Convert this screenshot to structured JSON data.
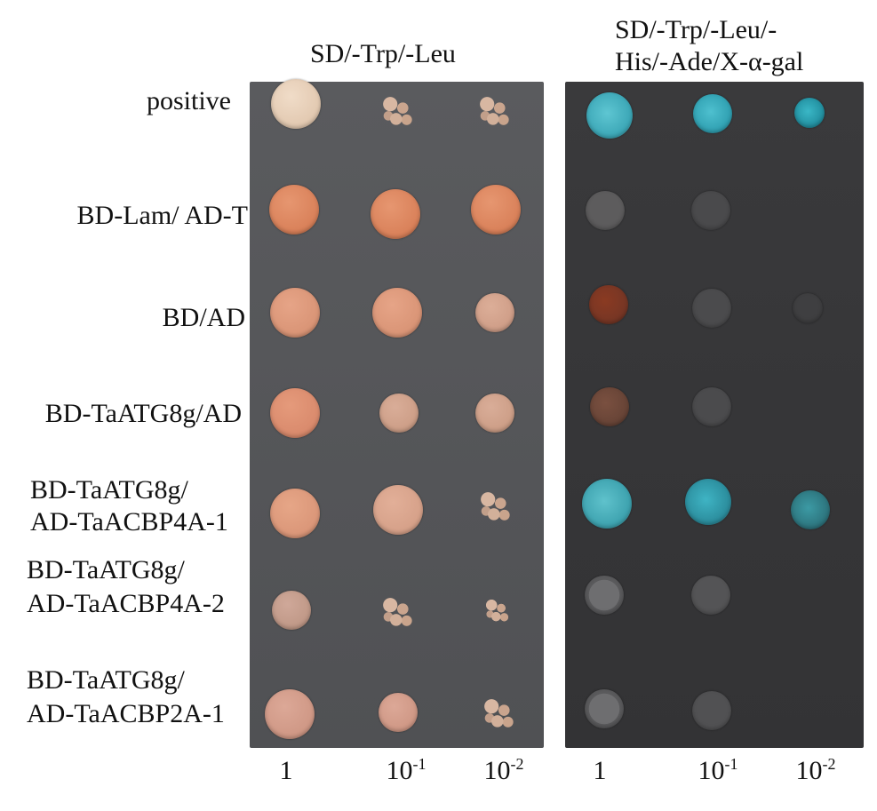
{
  "headers": {
    "left": "SD/-Trp/-Leu",
    "right_line1": "SD/-Trp/-Leu/-",
    "right_line2": "His/-Ade/X-α-gal"
  },
  "rows": [
    {
      "label_line1": "positive",
      "label_line2": ""
    },
    {
      "label_line1": "BD-Lam/ AD-T",
      "label_line2": ""
    },
    {
      "label_line1": "BD/AD",
      "label_line2": ""
    },
    {
      "label_line1": "BD-TaATG8g/AD",
      "label_line2": ""
    },
    {
      "label_line1": "BD-TaATG8g/",
      "label_line2": "AD-TaACBP4A-1"
    },
    {
      "label_line1": "BD-TaATG8g/",
      "label_line2": "AD-TaACBP4A-2"
    },
    {
      "label_line1": "BD-TaATG8g/",
      "label_line2": "AD-TaACBP2A-1"
    }
  ],
  "dilutions": {
    "left": [
      {
        "base": "1",
        "exp": ""
      },
      {
        "base": "10",
        "exp": "-1"
      },
      {
        "base": "10",
        "exp": "-2"
      }
    ],
    "right": [
      {
        "base": "1",
        "exp": ""
      },
      {
        "base": "10",
        "exp": "-1"
      },
      {
        "base": "10",
        "exp": "-2"
      }
    ]
  },
  "colors": {
    "colony_pale": "#e3c9b4",
    "colony_orange": "#d9805a",
    "colony_salmon": "#d99a7e",
    "colony_pink": "#d4a28e",
    "colony_blue": "#4bb4c4",
    "colony_brown": "#6b4638",
    "colony_rust": "#7a3a26",
    "colony_gray": "#5c5c5e",
    "colony_gray_speckle": "#6d6d6f"
  }
}
